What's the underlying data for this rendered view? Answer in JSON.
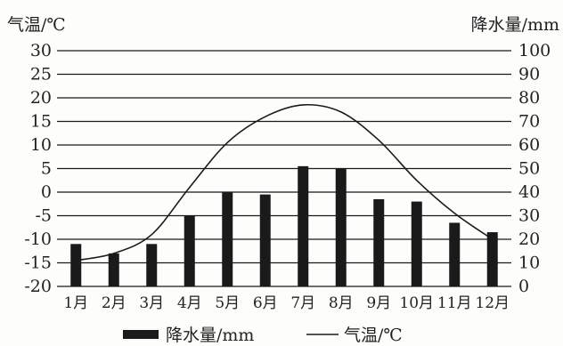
{
  "chart_data": {
    "type": "bar",
    "categories": [
      "1月",
      "2月",
      "3月",
      "4月",
      "5月",
      "6月",
      "7月",
      "8月",
      "9月",
      "10月",
      "11月",
      "12月"
    ],
    "series": [
      {
        "name": "降水量/mm",
        "kind": "bar",
        "axis": "right",
        "values": [
          18,
          14,
          18,
          30,
          40,
          39,
          51,
          50,
          37,
          36,
          27,
          23
        ]
      },
      {
        "name": "气温/℃",
        "kind": "line",
        "axis": "left",
        "values": [
          -14.5,
          -13,
          -9,
          1,
          10.5,
          16,
          18.5,
          17,
          11,
          2.5,
          -4.5,
          -10
        ]
      }
    ],
    "y_left": {
      "label": "气温/℃",
      "min": -20,
      "max": 30,
      "step": 5,
      "ticks": [
        "30",
        "25",
        "20",
        "15",
        "10",
        "5",
        "0",
        "-5",
        "-10",
        "-15",
        "-20"
      ]
    },
    "y_right": {
      "label": "降水量/mm",
      "min": 0,
      "max": 100,
      "step": 10,
      "ticks": [
        "100",
        "90",
        "80",
        "70",
        "60",
        "50",
        "40",
        "30",
        "20",
        "10",
        "0"
      ]
    },
    "grid": true,
    "legend": {
      "position": "bottom",
      "items": [
        "降水量/mm",
        "气温/℃"
      ]
    },
    "colors": {
      "bar": "#1a1a1a",
      "line": "#1a1a1a",
      "grid": "#1a1a1a"
    }
  }
}
